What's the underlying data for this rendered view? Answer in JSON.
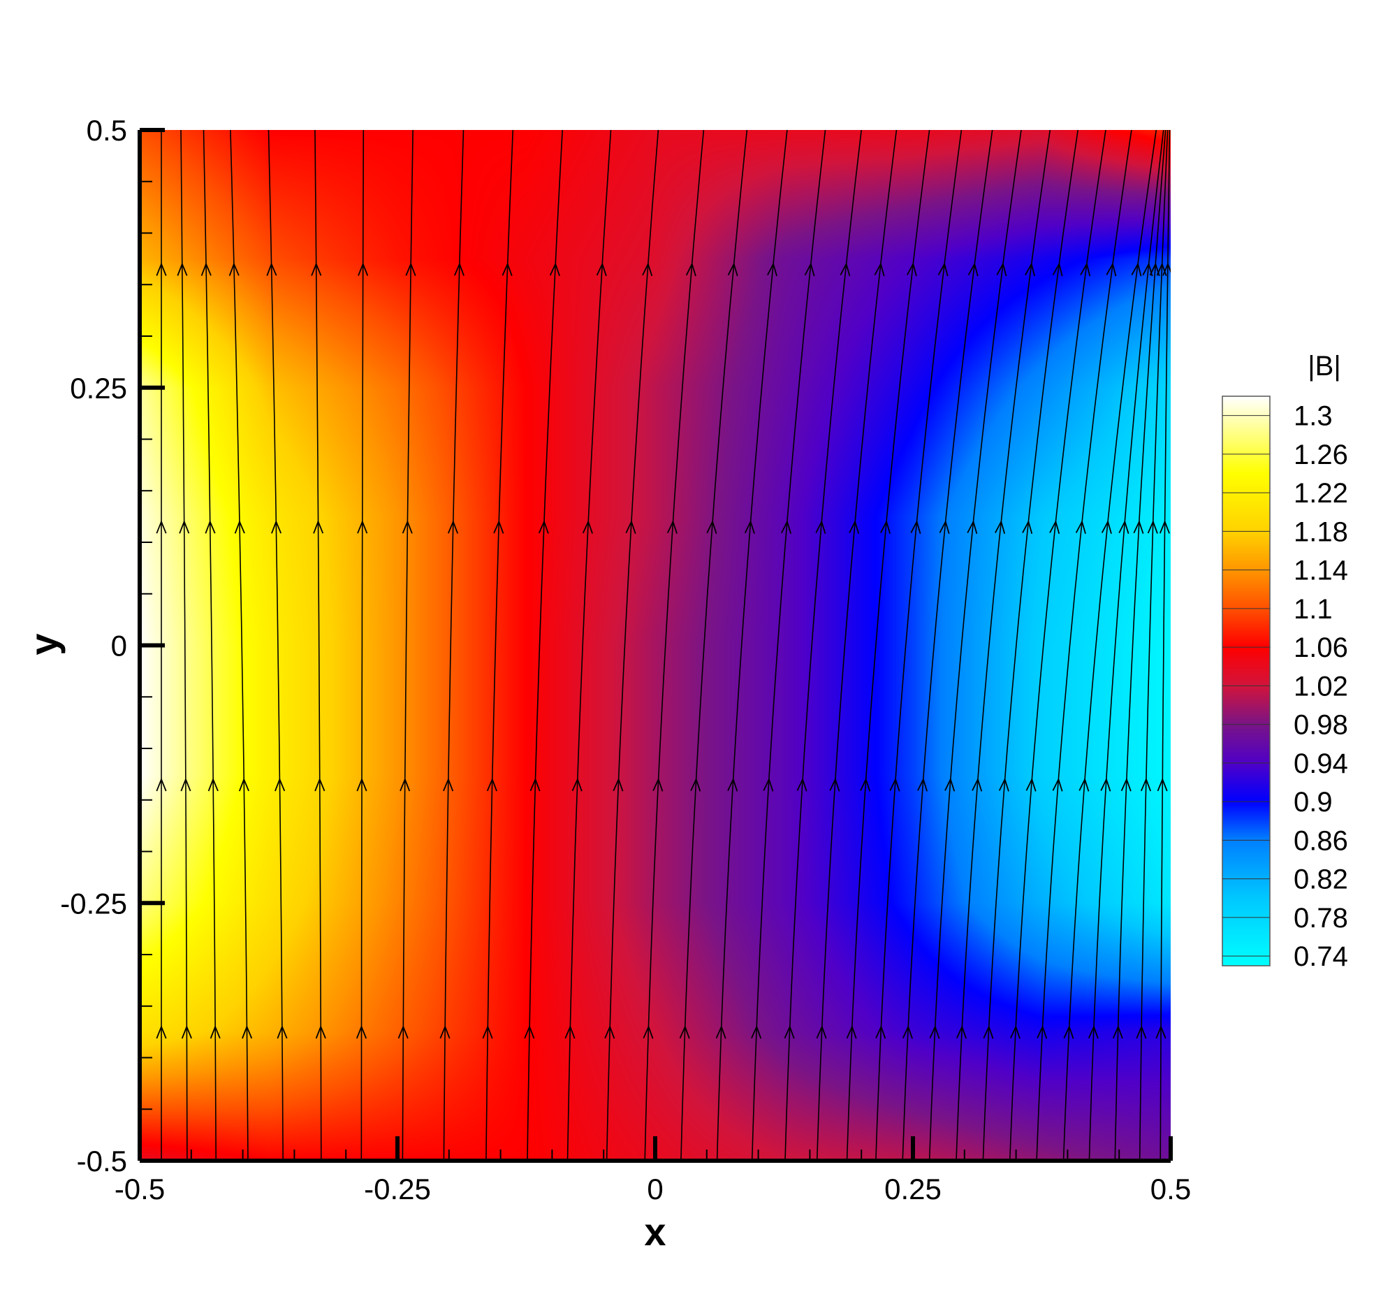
{
  "chart_data": {
    "type": "heatmap",
    "variable": "|B|",
    "xlabel": "x",
    "ylabel": "y",
    "xlim": [
      -0.5,
      0.5
    ],
    "ylim": [
      -0.5,
      0.5
    ],
    "x_ticks": [
      {
        "value": -0.5,
        "label": "-0.5"
      },
      {
        "value": -0.25,
        "label": "-0.25"
      },
      {
        "value": 0,
        "label": "0"
      },
      {
        "value": 0.25,
        "label": "0.25"
      },
      {
        "value": 0.5,
        "label": "0.5"
      }
    ],
    "y_ticks": [
      {
        "value": 0.5,
        "label": "0.5"
      },
      {
        "value": 0.25,
        "label": "0.25"
      },
      {
        "value": 0,
        "label": "0"
      },
      {
        "value": -0.25,
        "label": "-0.25"
      },
      {
        "value": -0.5,
        "label": "-0.5"
      }
    ],
    "colorbar": {
      "title": "|B|",
      "range": [
        0.73,
        1.32
      ],
      "labels": [
        "1.3",
        "1.26",
        "1.22",
        "1.18",
        "1.14",
        "1.1",
        "1.06",
        "1.02",
        "0.98",
        "0.94",
        "0.9",
        "0.86",
        "0.82",
        "0.78",
        "0.74"
      ],
      "label_values": [
        1.3,
        1.26,
        1.22,
        1.18,
        1.14,
        1.1,
        1.06,
        1.02,
        0.98,
        0.94,
        0.9,
        0.86,
        0.82,
        0.78,
        0.74
      ]
    },
    "colormap": [
      {
        "value": 0.73,
        "color": "#00ffff"
      },
      {
        "value": 0.8,
        "color": "#00c8ff"
      },
      {
        "value": 0.86,
        "color": "#0080ff"
      },
      {
        "value": 0.9,
        "color": "#0000ff"
      },
      {
        "value": 0.94,
        "color": "#5000c8"
      },
      {
        "value": 0.98,
        "color": "#7a1487"
      },
      {
        "value": 1.02,
        "color": "#d2143c"
      },
      {
        "value": 1.06,
        "color": "#ff0000"
      },
      {
        "value": 1.1,
        "color": "#ff5000"
      },
      {
        "value": 1.14,
        "color": "#ff9600"
      },
      {
        "value": 1.18,
        "color": "#ffd200"
      },
      {
        "value": 1.24,
        "color": "#ffff00"
      },
      {
        "value": 1.32,
        "color": "#ffffff"
      }
    ],
    "field_grid": {
      "x": [
        -0.5,
        -0.375,
        -0.25,
        -0.125,
        0,
        0.125,
        0.25,
        0.375,
        0.5
      ],
      "y": [
        0.5,
        0.375,
        0.25,
        0.125,
        0,
        -0.125,
        -0.25,
        -0.375,
        -0.5
      ],
      "values": [
        [
          1.1,
          1.06,
          1.06,
          1.06,
          1.04,
          1.04,
          1.04,
          1.03,
          1.08
        ],
        [
          1.16,
          1.1,
          1.07,
          1.05,
          1.03,
          0.97,
          0.94,
          0.91,
          0.88
        ],
        [
          1.29,
          1.17,
          1.12,
          1.06,
          1.01,
          0.96,
          0.91,
          0.85,
          0.78
        ],
        [
          1.31,
          1.21,
          1.14,
          1.06,
          1.01,
          0.95,
          0.88,
          0.8,
          0.75
        ],
        [
          1.32,
          1.22,
          1.14,
          1.06,
          1.0,
          0.95,
          0.88,
          0.79,
          0.74
        ],
        [
          1.32,
          1.22,
          1.14,
          1.06,
          1.0,
          0.95,
          0.88,
          0.79,
          0.74
        ],
        [
          1.28,
          1.2,
          1.13,
          1.06,
          1.0,
          0.95,
          0.89,
          0.82,
          0.76
        ],
        [
          1.2,
          1.16,
          1.11,
          1.06,
          1.02,
          0.97,
          0.93,
          0.91,
          0.92
        ],
        [
          1.04,
          1.06,
          1.06,
          1.06,
          1.04,
          1.02,
          1.01,
          0.99,
          0.97
        ]
      ]
    },
    "streamlines": {
      "x_at_bottom": [
        -0.479,
        -0.454,
        -0.426,
        -0.395,
        -0.361,
        -0.324,
        -0.285,
        -0.245,
        -0.205,
        -0.164,
        -0.124,
        -0.085,
        -0.047,
        -0.01,
        0.025,
        0.06,
        0.094,
        0.126,
        0.157,
        0.186,
        0.214,
        0.24,
        0.266,
        0.292,
        0.318,
        0.344,
        0.37,
        0.396,
        0.421,
        0.446,
        0.47,
        0.49
      ],
      "x_at_top": [
        -0.479,
        -0.46,
        -0.438,
        -0.412,
        -0.375,
        -0.33,
        -0.283,
        -0.235,
        -0.186,
        -0.138,
        -0.09,
        -0.043,
        0.003,
        0.047,
        0.089,
        0.128,
        0.165,
        0.2,
        0.234,
        0.266,
        0.297,
        0.327,
        0.355,
        0.383,
        0.41,
        0.437,
        0.462,
        0.486,
        0.493,
        0.495,
        0.497,
        0.499
      ],
      "arrow_y": [
        0.37,
        0.12,
        -0.13,
        -0.37
      ],
      "direction": "up",
      "color": "#000000"
    }
  }
}
